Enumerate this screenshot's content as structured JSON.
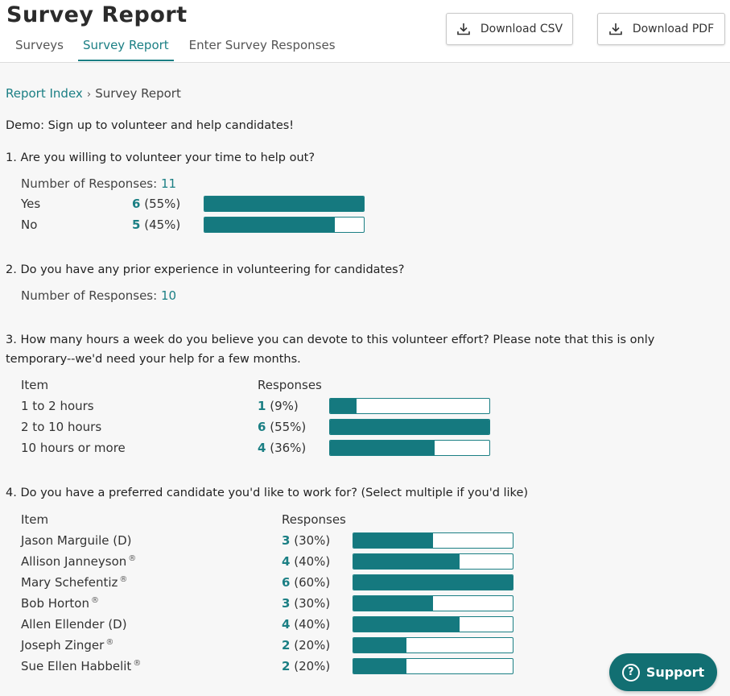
{
  "header": {
    "title": "Survey Report",
    "tabs": [
      {
        "label": "Surveys",
        "active": false
      },
      {
        "label": "Survey Report",
        "active": true
      },
      {
        "label": "Enter Survey Responses",
        "active": false
      }
    ],
    "download_csv": "Download CSV",
    "download_pdf": "Download PDF"
  },
  "breadcrumb": {
    "link": "Report Index",
    "separator": "›",
    "current": "Survey Report"
  },
  "survey_title": "Demo: Sign up to volunteer and help candidates!",
  "colors": {
    "accent": "#1b7f84",
    "bar_fill": "#15797f",
    "support_bg": "#126f72"
  },
  "q1": {
    "text": "1. Are you willing to volunteer your time to help out?",
    "responses_label": "Number of Responses:",
    "responses": "11",
    "rows": [
      {
        "label": "Yes",
        "count": "6",
        "pct": "(55%)",
        "fill": 1.0
      },
      {
        "label": "No",
        "count": "5",
        "pct": "(45%)",
        "fill": 0.82
      }
    ]
  },
  "q2": {
    "text": "2. Do you have any prior experience in volunteering for candidates?",
    "responses_label": "Number of Responses:",
    "responses": "10"
  },
  "q3": {
    "text": "3. How many hours a week do you believe you can devote to this volunteer effort? Please note that this is only temporary--we'd need your help for a few months.",
    "col_item": "Item",
    "col_responses": "Responses",
    "rows": [
      {
        "label": "1 to 2 hours",
        "count": "1",
        "pct": "(9%)",
        "fill": 0.165
      },
      {
        "label": "2 to 10 hours",
        "count": "6",
        "pct": "(55%)",
        "fill": 1.0
      },
      {
        "label": "10 hours or more",
        "count": "4",
        "pct": "(36%)",
        "fill": 0.655
      }
    ]
  },
  "q4": {
    "text": "4. Do you have a preferred candidate you'd like to work for? (Select multiple if you'd like)",
    "col_item": "Item",
    "col_responses": "Responses",
    "rows": [
      {
        "label": "Jason Marguile (D)",
        "reg": "",
        "count": "3",
        "pct": "(30%)",
        "fill": 0.5
      },
      {
        "label": "Allison Janneyson",
        "reg": "®",
        "count": "4",
        "pct": "(40%)",
        "fill": 0.667
      },
      {
        "label": "Mary Schefentiz",
        "reg": "®",
        "count": "6",
        "pct": "(60%)",
        "fill": 1.0
      },
      {
        "label": "Bob Horton",
        "reg": "®",
        "count": "3",
        "pct": "(30%)",
        "fill": 0.5
      },
      {
        "label": "Allen Ellender (D)",
        "reg": "",
        "count": "4",
        "pct": "(40%)",
        "fill": 0.667
      },
      {
        "label": "Joseph Zinger",
        "reg": "®",
        "count": "2",
        "pct": "(20%)",
        "fill": 0.333
      },
      {
        "label": "Sue Ellen Habbelit",
        "reg": "®",
        "count": "2",
        "pct": "(20%)",
        "fill": 0.333
      }
    ]
  },
  "support": {
    "label": "Support",
    "icon": "question-circle-icon",
    "icon_glyph": "?"
  }
}
